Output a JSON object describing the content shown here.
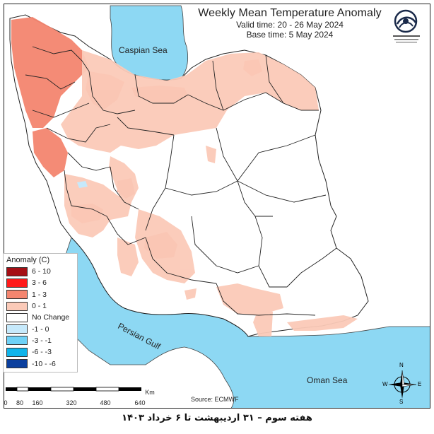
{
  "title": {
    "main": "Weekly Mean Temperature Anomaly",
    "valid": "Valid time: 20 - 26 May 2024",
    "base": "Base time: 5 May 2024"
  },
  "labels": {
    "caspian": "Caspian Sea",
    "persian_gulf": "Persian Gulf",
    "oman": "Oman Sea"
  },
  "legend": {
    "title": "Anomaly (C)",
    "items": [
      {
        "label": "6 - 10",
        "color": "#a50f15"
      },
      {
        "label": "3 - 6",
        "color": "#ff1a1a"
      },
      {
        "label": "1 - 3",
        "color": "#f4856f"
      },
      {
        "label": "0 - 1",
        "color": "#fbcab8"
      },
      {
        "label": "No Change",
        "color": "#ffffff"
      },
      {
        "label": "-1 - 0",
        "color": "#c6e9fb"
      },
      {
        "label": "-3 - -1",
        "color": "#6fd1f6"
      },
      {
        "label": "-6 - -3",
        "color": "#10b4ea"
      },
      {
        "label": "-10 - -6",
        "color": "#0b3f9e"
      }
    ]
  },
  "scale": {
    "unit": "Km",
    "ticks": [
      "0",
      "80",
      "160",
      "320",
      "480",
      "640"
    ]
  },
  "source": "Source: ECMWF",
  "compass": {
    "n": "N",
    "s": "S",
    "e": "E",
    "w": "W"
  },
  "footer": "هفته سوم – ۳۱ اردیبهشت تا ۶ خرداد ۱۴۰۳",
  "colors": {
    "water": "#8dd8f3",
    "land": "#ffffff",
    "border": "#222222"
  }
}
